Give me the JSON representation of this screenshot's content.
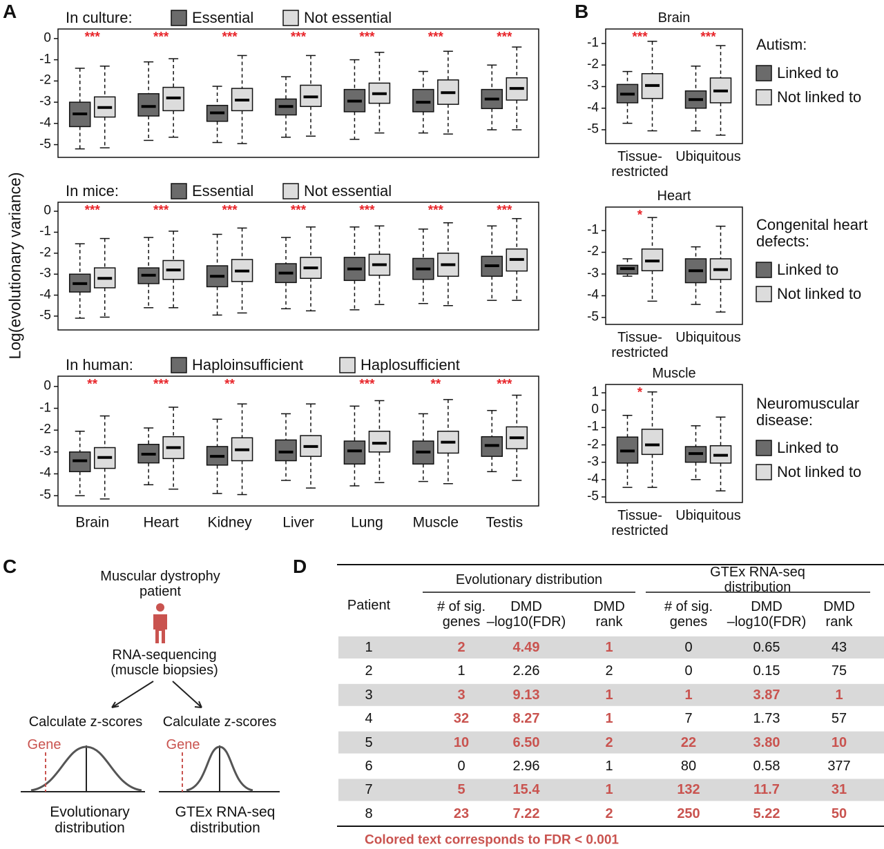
{
  "figure_labels": [
    "A",
    "B",
    "C",
    "D"
  ],
  "chart_data": [
    {
      "type": "box",
      "title": "In culture:",
      "ylabel": "Log(evolutionary variance)",
      "ylim": [
        -5.6,
        0.45
      ],
      "yticks": [
        -5,
        -4,
        -3,
        -2,
        -1,
        0
      ],
      "annotation_color": "#e8262b",
      "annotations": [
        "***",
        "***",
        "***",
        "***",
        "***",
        "***",
        "***"
      ],
      "series": [
        {
          "name": "Essential",
          "color": "#6b6b6b",
          "values": [
            [
              -5.2,
              -4.15,
              -3.55,
              -3.0,
              -1.4
            ],
            [
              -4.8,
              -3.65,
              -3.2,
              -2.6,
              -1.1
            ],
            [
              -4.9,
              -3.9,
              -3.5,
              -3.15,
              -2.25
            ],
            [
              -4.65,
              -3.6,
              -3.2,
              -2.85,
              -1.8
            ],
            [
              -4.75,
              -3.45,
              -2.95,
              -2.4,
              -1.0
            ],
            [
              -4.45,
              -3.45,
              -3.0,
              -2.4,
              -1.55
            ],
            [
              -4.3,
              -3.3,
              -2.85,
              -2.4,
              -1.25
            ]
          ]
        },
        {
          "name": "Not essential",
          "color": "#dcdcdc",
          "values": [
            [
              -5.15,
              -3.7,
              -3.25,
              -2.75,
              -1.3
            ],
            [
              -4.65,
              -3.4,
              -2.8,
              -2.3,
              -0.95
            ],
            [
              -4.95,
              -3.4,
              -2.9,
              -2.35,
              -0.8
            ],
            [
              -4.6,
              -3.2,
              -2.75,
              -2.2,
              -0.8
            ],
            [
              -4.45,
              -3.05,
              -2.6,
              -2.1,
              -0.65
            ],
            [
              -4.5,
              -3.1,
              -2.55,
              -1.95,
              -0.6
            ],
            [
              -4.3,
              -2.9,
              -2.35,
              -1.85,
              -0.4
            ]
          ]
        }
      ]
    },
    {
      "type": "box",
      "title": "In mice:",
      "ylim": [
        -5.66,
        0.43
      ],
      "yticks": [
        -5,
        -4,
        -3,
        -2,
        -1,
        0
      ],
      "annotation_color": "#e8262b",
      "annotations": [
        "***",
        "***",
        "***",
        "***",
        "***",
        "***",
        "***"
      ],
      "series": [
        {
          "name": "Essential",
          "color": "#6b6b6b",
          "values": [
            [
              -5.1,
              -3.85,
              -3.45,
              -3.0,
              -1.55
            ],
            [
              -4.6,
              -3.45,
              -3.05,
              -2.7,
              -1.25
            ],
            [
              -4.95,
              -3.6,
              -3.1,
              -2.6,
              -1.1
            ],
            [
              -4.65,
              -3.4,
              -2.95,
              -2.5,
              -1.25
            ],
            [
              -4.7,
              -3.3,
              -2.75,
              -2.2,
              -0.75
            ],
            [
              -4.4,
              -3.25,
              -2.75,
              -2.25,
              -0.85
            ],
            [
              -4.25,
              -3.1,
              -2.6,
              -2.15,
              -0.7
            ]
          ]
        },
        {
          "name": "Not essential",
          "color": "#dcdcdc",
          "values": [
            [
              -5.05,
              -3.65,
              -3.2,
              -2.7,
              -1.3
            ],
            [
              -4.6,
              -3.25,
              -2.8,
              -2.35,
              -0.95
            ],
            [
              -4.85,
              -3.35,
              -2.85,
              -2.3,
              -0.8
            ],
            [
              -4.75,
              -3.2,
              -2.7,
              -2.2,
              -0.75
            ],
            [
              -4.45,
              -3.05,
              -2.55,
              -2.05,
              -0.7
            ],
            [
              -4.5,
              -3.1,
              -2.55,
              -2.0,
              -0.55
            ],
            [
              -4.25,
              -2.85,
              -2.3,
              -1.8,
              -0.35
            ]
          ]
        }
      ]
    },
    {
      "type": "box",
      "title": "In human:",
      "ylim": [
        -5.47,
        0.47
      ],
      "yticks": [
        -5,
        -4,
        -3,
        -2,
        -1,
        0
      ],
      "annotation_color": "#e8262b",
      "categories": [
        "Brain",
        "Heart",
        "Kidney",
        "Liver",
        "Lung",
        "Muscle",
        "Testis"
      ],
      "annotations": [
        "**",
        "***",
        "**",
        null,
        "***",
        "**",
        "***"
      ],
      "series": [
        {
          "name": "Haploinsufficient",
          "color": "#6b6b6b",
          "values": [
            [
              -5.0,
              -3.9,
              -3.4,
              -3.0,
              -2.05
            ],
            [
              -4.5,
              -3.5,
              -3.1,
              -2.65,
              -1.9
            ],
            [
              -4.9,
              -3.6,
              -3.2,
              -2.75,
              -1.5
            ],
            [
              -4.3,
              -3.4,
              -3.0,
              -2.45,
              -1.25
            ],
            [
              -4.55,
              -3.55,
              -2.95,
              -2.5,
              -0.9
            ],
            [
              -4.35,
              -3.55,
              -3.0,
              -2.5,
              -1.25
            ],
            [
              -3.9,
              -3.2,
              -2.7,
              -2.3,
              -1.1
            ]
          ]
        },
        {
          "name": "Haplosufficient",
          "color": "#dcdcdc",
          "values": [
            [
              -5.15,
              -3.75,
              -3.25,
              -2.8,
              -1.35
            ],
            [
              -4.7,
              -3.3,
              -2.8,
              -2.3,
              -0.95
            ],
            [
              -4.95,
              -3.4,
              -2.9,
              -2.35,
              -0.8
            ],
            [
              -4.65,
              -3.2,
              -2.75,
              -2.25,
              -0.8
            ],
            [
              -4.4,
              -3.0,
              -2.6,
              -2.05,
              -0.65
            ],
            [
              -4.45,
              -3.05,
              -2.55,
              -2.05,
              -0.6
            ],
            [
              -4.3,
              -2.85,
              -2.35,
              -1.85,
              -0.4
            ]
          ]
        }
      ]
    },
    {
      "type": "box",
      "title": "Brain",
      "legend_title": "Autism:",
      "ylim": [
        -5.64,
        -0.33
      ],
      "yticks": [
        -5,
        -4,
        -3,
        -2,
        -1
      ],
      "annotation_color": "#e8262b",
      "categories": [
        "Tissue-\nrestricted",
        "Ubiquitous"
      ],
      "annotations": [
        "***",
        "***"
      ],
      "series": [
        {
          "name": "Linked to",
          "color": "#6b6b6b",
          "values": [
            [
              -4.7,
              -3.75,
              -3.35,
              -2.9,
              -2.3
            ],
            [
              -5.05,
              -4.0,
              -3.6,
              -3.2,
              -2.05
            ]
          ]
        },
        {
          "name": "Not linked to",
          "color": "#dcdcdc",
          "values": [
            [
              -5.05,
              -3.55,
              -2.95,
              -2.4,
              -0.9
            ],
            [
              -5.25,
              -3.75,
              -3.2,
              -2.6,
              -1.1
            ]
          ]
        }
      ]
    },
    {
      "type": "box",
      "title": "Heart",
      "legend_title": "Congenital heart\ndefects:",
      "ylim": [
        -5.32,
        0.08
      ],
      "yticks": [
        -5,
        -4,
        -3,
        -2,
        -1
      ],
      "annotation_color": "#e8262b",
      "categories": [
        "Tissue-\nrestricted",
        "Ubiquitous"
      ],
      "annotations": [
        "*",
        null
      ],
      "series": [
        {
          "name": "Linked to",
          "color": "#6b6b6b",
          "values": [
            [
              -3.1,
              -3.0,
              -2.75,
              -2.6,
              -2.3
            ],
            [
              -4.4,
              -3.4,
              -2.85,
              -2.3,
              -1.75
            ]
          ]
        },
        {
          "name": "Not linked to",
          "color": "#dcdcdc",
          "values": [
            [
              -4.25,
              -2.85,
              -2.4,
              -1.85,
              -0.4
            ],
            [
              -4.75,
              -3.25,
              -2.8,
              -2.3,
              -0.8
            ]
          ]
        }
      ]
    },
    {
      "type": "box",
      "title": "Muscle",
      "legend_title": "Neuromuscular\ndisease:",
      "ylim": [
        -5.32,
        1.48
      ],
      "yticks": [
        -5,
        -4,
        -3,
        -2,
        -1,
        0,
        1
      ],
      "annotation_color": "#e8262b",
      "categories": [
        "Tissue-\nrestricted",
        "Ubiquitous"
      ],
      "annotations": [
        "*",
        null
      ],
      "series": [
        {
          "name": "Linked to",
          "color": "#6b6b6b",
          "values": [
            [
              -4.45,
              -3.05,
              -2.35,
              -1.55,
              -0.3
            ],
            [
              -4.0,
              -3.0,
              -2.5,
              -2.1,
              -0.9
            ]
          ]
        },
        {
          "name": "Not linked to",
          "color": "#dcdcdc",
          "values": [
            [
              -4.45,
              -2.55,
              -2.0,
              -1.1,
              1.05
            ],
            [
              -4.65,
              -3.05,
              -2.6,
              -2.05,
              -0.4
            ]
          ]
        }
      ]
    }
  ],
  "diagram": {
    "patient": "Muscular dystrophy\npatient",
    "sequencing": "RNA-sequencing\n(muscle biopsies)",
    "steps": [
      "Calculate z-scores",
      "Calculate z-scores"
    ],
    "gene_labels": [
      "Gene",
      "Gene"
    ],
    "distributions": [
      "Evolutionary\ndistribution",
      "GTEx RNA-seq\ndistribution"
    ]
  },
  "table": {
    "groups": [
      "Evolutionary distribution",
      "GTEx RNA-seq distribution"
    ],
    "columns": [
      "Patient",
      "# of sig.\ngenes",
      "DMD\n–log10(FDR)",
      "DMD\nrank",
      "# of sig.\ngenes",
      "DMD\n–log10(FDR)",
      "DMD\nrank"
    ],
    "rows": [
      [
        "1",
        "2",
        "4.49",
        "1",
        "0",
        "0.65",
        "43"
      ],
      [
        "2",
        "1",
        "2.26",
        "2",
        "0",
        "0.15",
        "75"
      ],
      [
        "3",
        "3",
        "9.13",
        "1",
        "1",
        "3.87",
        "1"
      ],
      [
        "4",
        "32",
        "8.27",
        "1",
        "7",
        "1.73",
        "57"
      ],
      [
        "5",
        "10",
        "6.50",
        "2",
        "22",
        "3.80",
        "10"
      ],
      [
        "6",
        "0",
        "2.96",
        "1",
        "80",
        "0.58",
        "377"
      ],
      [
        "7",
        "5",
        "15.4",
        "1",
        "132",
        "11.7",
        "31"
      ],
      [
        "8",
        "23",
        "7.22",
        "2",
        "250",
        "5.22",
        "50"
      ]
    ],
    "colored": [
      [
        true,
        false
      ],
      [
        false,
        false
      ],
      [
        true,
        true
      ],
      [
        true,
        false
      ],
      [
        true,
        true
      ],
      [
        false,
        false
      ],
      [
        true,
        true
      ],
      [
        true,
        true
      ]
    ],
    "highlight_color": "#c9534f",
    "footnote": "Colored text corresponds to FDR < 0.001"
  }
}
